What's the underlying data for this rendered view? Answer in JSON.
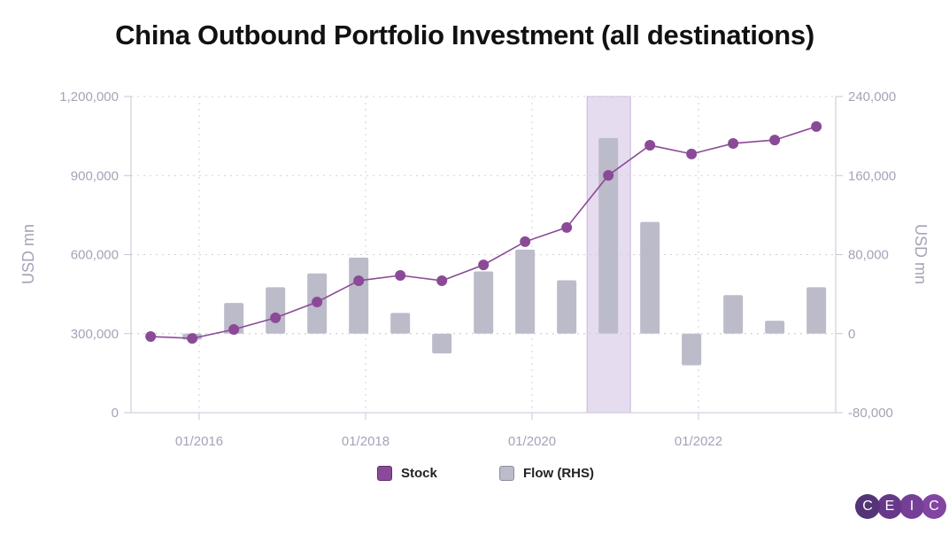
{
  "chart_data": {
    "type": "bar+line",
    "title": "China Outbound Portfolio Investment (all destinations)",
    "ylabel_left": "USD mn",
    "ylabel_right": "USD mn",
    "ylim_left": [
      0,
      1200000
    ],
    "ylim_right": [
      -80000,
      240000
    ],
    "yticks_left": [
      "0",
      "300,000",
      "600,000",
      "900,000",
      "1,200,000"
    ],
    "yticks_right": [
      "-80,000",
      "0",
      "80,000",
      "160,000",
      "240,000"
    ],
    "xticks": [
      "01/2016",
      "01/2018",
      "01/2020",
      "01/2022"
    ],
    "grid": true,
    "legend_placement": "bottom",
    "highlight_period": "12/2020",
    "x": [
      "06/2015",
      "12/2015",
      "06/2016",
      "12/2016",
      "06/2017",
      "12/2017",
      "06/2018",
      "12/2018",
      "06/2019",
      "12/2019",
      "06/2020",
      "12/2020",
      "06/2021",
      "12/2021",
      "06/2022",
      "12/2022",
      "06/2023"
    ],
    "series": [
      {
        "name": "Stock",
        "type": "line",
        "axis": "left",
        "color": "#8b4a97",
        "values": [
          289000,
          282000,
          316000,
          360000,
          420000,
          501000,
          521000,
          501000,
          561000,
          649000,
          703000,
          901000,
          1015000,
          982000,
          1022000,
          1035000,
          1086000
        ]
      },
      {
        "name": "Flow (RHS)",
        "type": "bar",
        "axis": "right",
        "color": "#bcbbc9",
        "values": [
          0,
          -6000,
          31000,
          47000,
          61000,
          77000,
          21000,
          -20000,
          63000,
          85000,
          54000,
          198000,
          113000,
          -32000,
          39000,
          13000,
          47000
        ]
      }
    ]
  },
  "logo": {
    "letters": [
      "C",
      "E",
      "I",
      "C"
    ],
    "colors": [
      "#4b2a6f",
      "#5e2f82",
      "#6f3592",
      "#7d3c9e"
    ]
  }
}
